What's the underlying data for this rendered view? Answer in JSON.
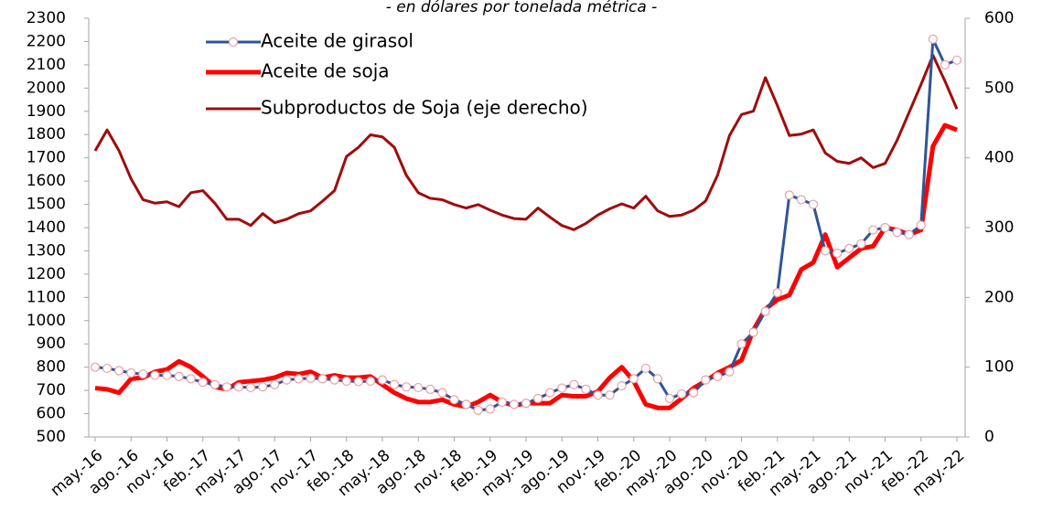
{
  "chart_data": {
    "type": "line",
    "subtitle": "- en dólares por tonelada métrica -",
    "categories": [
      "may.-16",
      null,
      null,
      "ago.-16",
      null,
      null,
      "nov.-16",
      null,
      null,
      "feb.-17",
      null,
      null,
      "may.-17",
      null,
      null,
      "ago.-17",
      null,
      null,
      "nov.-17",
      null,
      null,
      "feb.-18",
      null,
      null,
      "may.-18",
      null,
      null,
      "ago.-18",
      null,
      null,
      "nov.-18",
      null,
      null,
      "feb.-19",
      null,
      null,
      "may.-19",
      null,
      null,
      "ago.-19",
      null,
      null,
      "nov.-19",
      null,
      null,
      "feb.-20",
      null,
      null,
      "may.-20",
      null,
      null,
      "ago.-20",
      null,
      null,
      "nov.-20",
      null,
      null,
      "feb.-21",
      null,
      null,
      "may.-21",
      null,
      null,
      "ago.-21",
      null,
      null,
      "nov.-21",
      null,
      null,
      "feb.-22",
      null,
      null,
      "may.-22"
    ],
    "series": [
      {
        "name": "Aceite de girasol",
        "color": "#2f5597",
        "marker": "circle",
        "marker_color": "#e8a0a8",
        "width": 3,
        "values": [
          800,
          795,
          785,
          775,
          770,
          765,
          765,
          760,
          750,
          735,
          725,
          715,
          715,
          712,
          715,
          725,
          745,
          750,
          752,
          750,
          745,
          740,
          738,
          740,
          745,
          725,
          715,
          712,
          705,
          690,
          660,
          640,
          615,
          620,
          650,
          640,
          645,
          665,
          690,
          710,
          725,
          705,
          680,
          680,
          720,
          750,
          795,
          750,
          665,
          685,
          690,
          745,
          760,
          780,
          900,
          950,
          1040,
          1120,
          1540,
          1520,
          1500,
          1300,
          1290,
          1310,
          1330,
          1390,
          1400,
          1380,
          1370,
          1410,
          2210,
          2100,
          2120
        ]
      },
      {
        "name": "Aceite de soja",
        "color": "#ff0000",
        "width": 5,
        "values": [
          710,
          705,
          690,
          750,
          755,
          780,
          790,
          825,
          800,
          760,
          715,
          705,
          735,
          740,
          745,
          755,
          775,
          770,
          780,
          755,
          765,
          755,
          755,
          760,
          725,
          690,
          665,
          650,
          650,
          660,
          640,
          630,
          650,
          680,
          650,
          635,
          645,
          645,
          645,
          680,
          675,
          675,
          695,
          755,
          800,
          740,
          640,
          625,
          625,
          665,
          710,
          740,
          775,
          800,
          830,
          960,
          1050,
          1090,
          1110,
          1220,
          1250,
          1370,
          1230,
          1270,
          1310,
          1320,
          1400,
          1390,
          1370,
          1390,
          1750,
          1840,
          1820
        ]
      },
      {
        "name": "Subproductos de Soja (eje derecho)",
        "color": "#a00c0c",
        "width": 3,
        "axis": "y2",
        "values": [
          410,
          440,
          410,
          370,
          340,
          335,
          337,
          330,
          350,
          353,
          335,
          312,
          312,
          303,
          320,
          307,
          312,
          320,
          324,
          338,
          353,
          402,
          415,
          433,
          430,
          415,
          375,
          350,
          342,
          340,
          333,
          328,
          333,
          325,
          318,
          313,
          312,
          328,
          315,
          303,
          297,
          306,
          318,
          327,
          334,
          328,
          345,
          324,
          316,
          318,
          325,
          338,
          375,
          432,
          462,
          467,
          515,
          475,
          432,
          434,
          440,
          407,
          395,
          392,
          400,
          386,
          392,
          425,
          465,
          505,
          547,
          510,
          470
        ]
      }
    ],
    "ylim": [
      500,
      2300
    ],
    "yticks": [
      500,
      600,
      700,
      800,
      900,
      1000,
      1100,
      1200,
      1300,
      1400,
      1500,
      1600,
      1700,
      1800,
      1900,
      2000,
      2100,
      2200,
      2300
    ],
    "y2lim": [
      0,
      600
    ],
    "y2ticks": [
      0,
      100,
      200,
      300,
      400,
      500,
      600
    ],
    "legend": "top-left",
    "grid": false
  }
}
